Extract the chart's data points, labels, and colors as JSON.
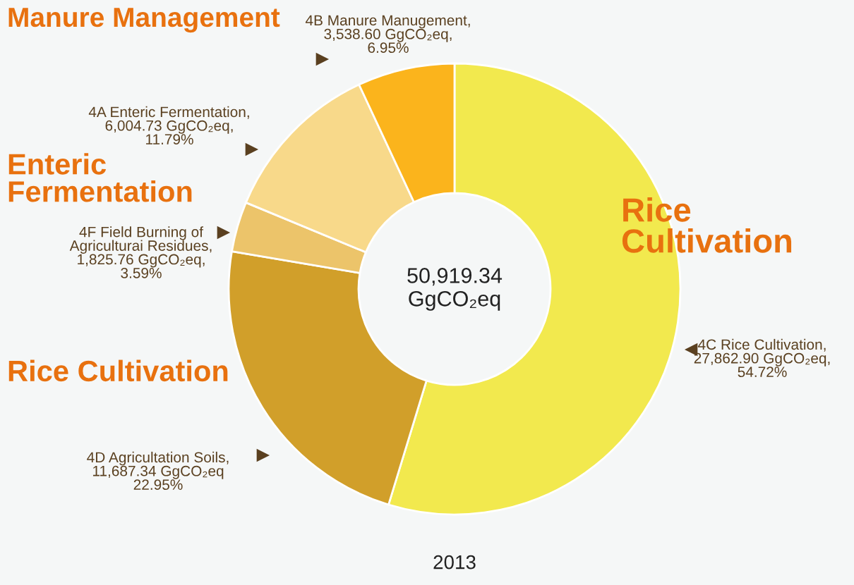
{
  "chart_data": {
    "type": "donut",
    "categories": [
      "4C Rice Cultivation",
      "4D Agricultation Soils",
      "4F Field Burning of Agriculturai Residues",
      "4A Enteric Fermentation",
      "4B Manure Manugement"
    ],
    "values": [
      27862.9,
      11687.34,
      1825.76,
      6004.73,
      3538.6
    ],
    "colors": [
      "#f2e94e",
      "#d19f2a",
      "#ecc46a",
      "#f8d98a",
      "#fbb41c"
    ],
    "value_labels": [
      ",\n27,862.90 GgCO₂eq,\n54.72%",
      ",\n11,687.34 GgCO₂eq\n22.95%",
      ",\n1,825.76 GgCO₂eq,\n3.59%",
      ",\n6,004.73 GgCO₂eq,\n11.79%",
      ",\n3,538.60 GgCO₂eq,\n6.95%"
    ],
    "subtitle": "50,919.34\nGgCO₂eq",
    "xlabel": "2013",
    "annotations": [
      "Rice\nCultivation",
      "Rice Cultivation",
      "Enteric\nFermentation",
      "Manure Management"
    ],
    "legend": false
  }
}
